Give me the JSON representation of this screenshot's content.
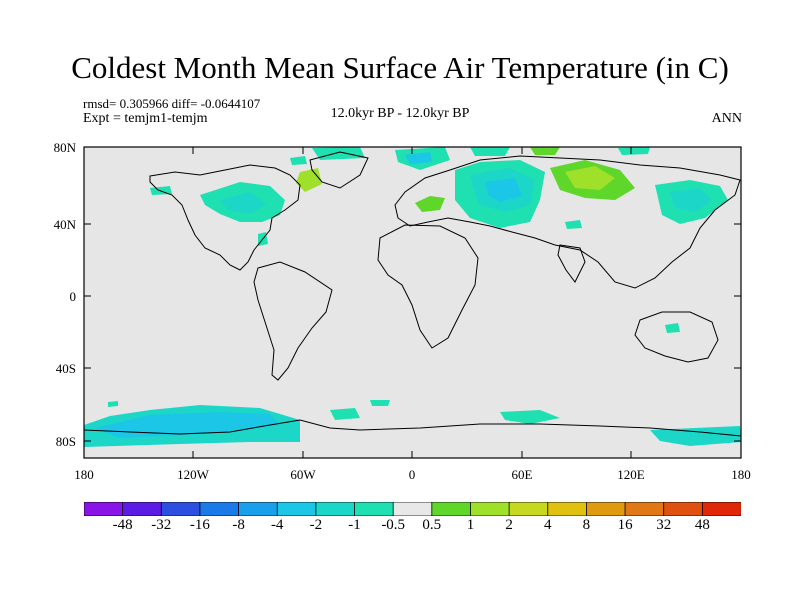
{
  "title": "Coldest Month Mean Surface Air Temperature (in C)",
  "stats": "rmsd= 0.305966 diff= -0.0644107",
  "expt": "Expt = temjm1-temjm",
  "period": "12.0kyr BP - 12.0kyr BP",
  "season": "ANN",
  "lat_labels": [
    "80N",
    "40N",
    "0",
    "40S",
    "80S"
  ],
  "lon_labels": [
    "180",
    "120W",
    "60W",
    "0",
    "60E",
    "120E",
    "180"
  ],
  "colorbar": {
    "colors": [
      "#8a13e8",
      "#5b1de6",
      "#2d4fe0",
      "#1a7be8",
      "#1aa0ea",
      "#1cc6e6",
      "#1cd6c8",
      "#1ee0b0",
      "#e8e8e8",
      "#5fd62a",
      "#9fe02a",
      "#c8d820",
      "#e0c010",
      "#e09a10",
      "#e07818",
      "#e05010",
      "#e02808"
    ],
    "labels": [
      "-48",
      "-32",
      "-16",
      "-8",
      "-4",
      "-2",
      "-1",
      "-0.5",
      "0.5",
      "1",
      "2",
      "4",
      "8",
      "16",
      "32",
      "48"
    ]
  },
  "colors": {
    "background": "#e6e6e6",
    "cool_light": "#1ee0b0",
    "cool_mid": "#1cd6c8",
    "cool_strong": "#1cc6e6",
    "warm_light": "#5fd62a",
    "warm_mid": "#9fe02a"
  }
}
